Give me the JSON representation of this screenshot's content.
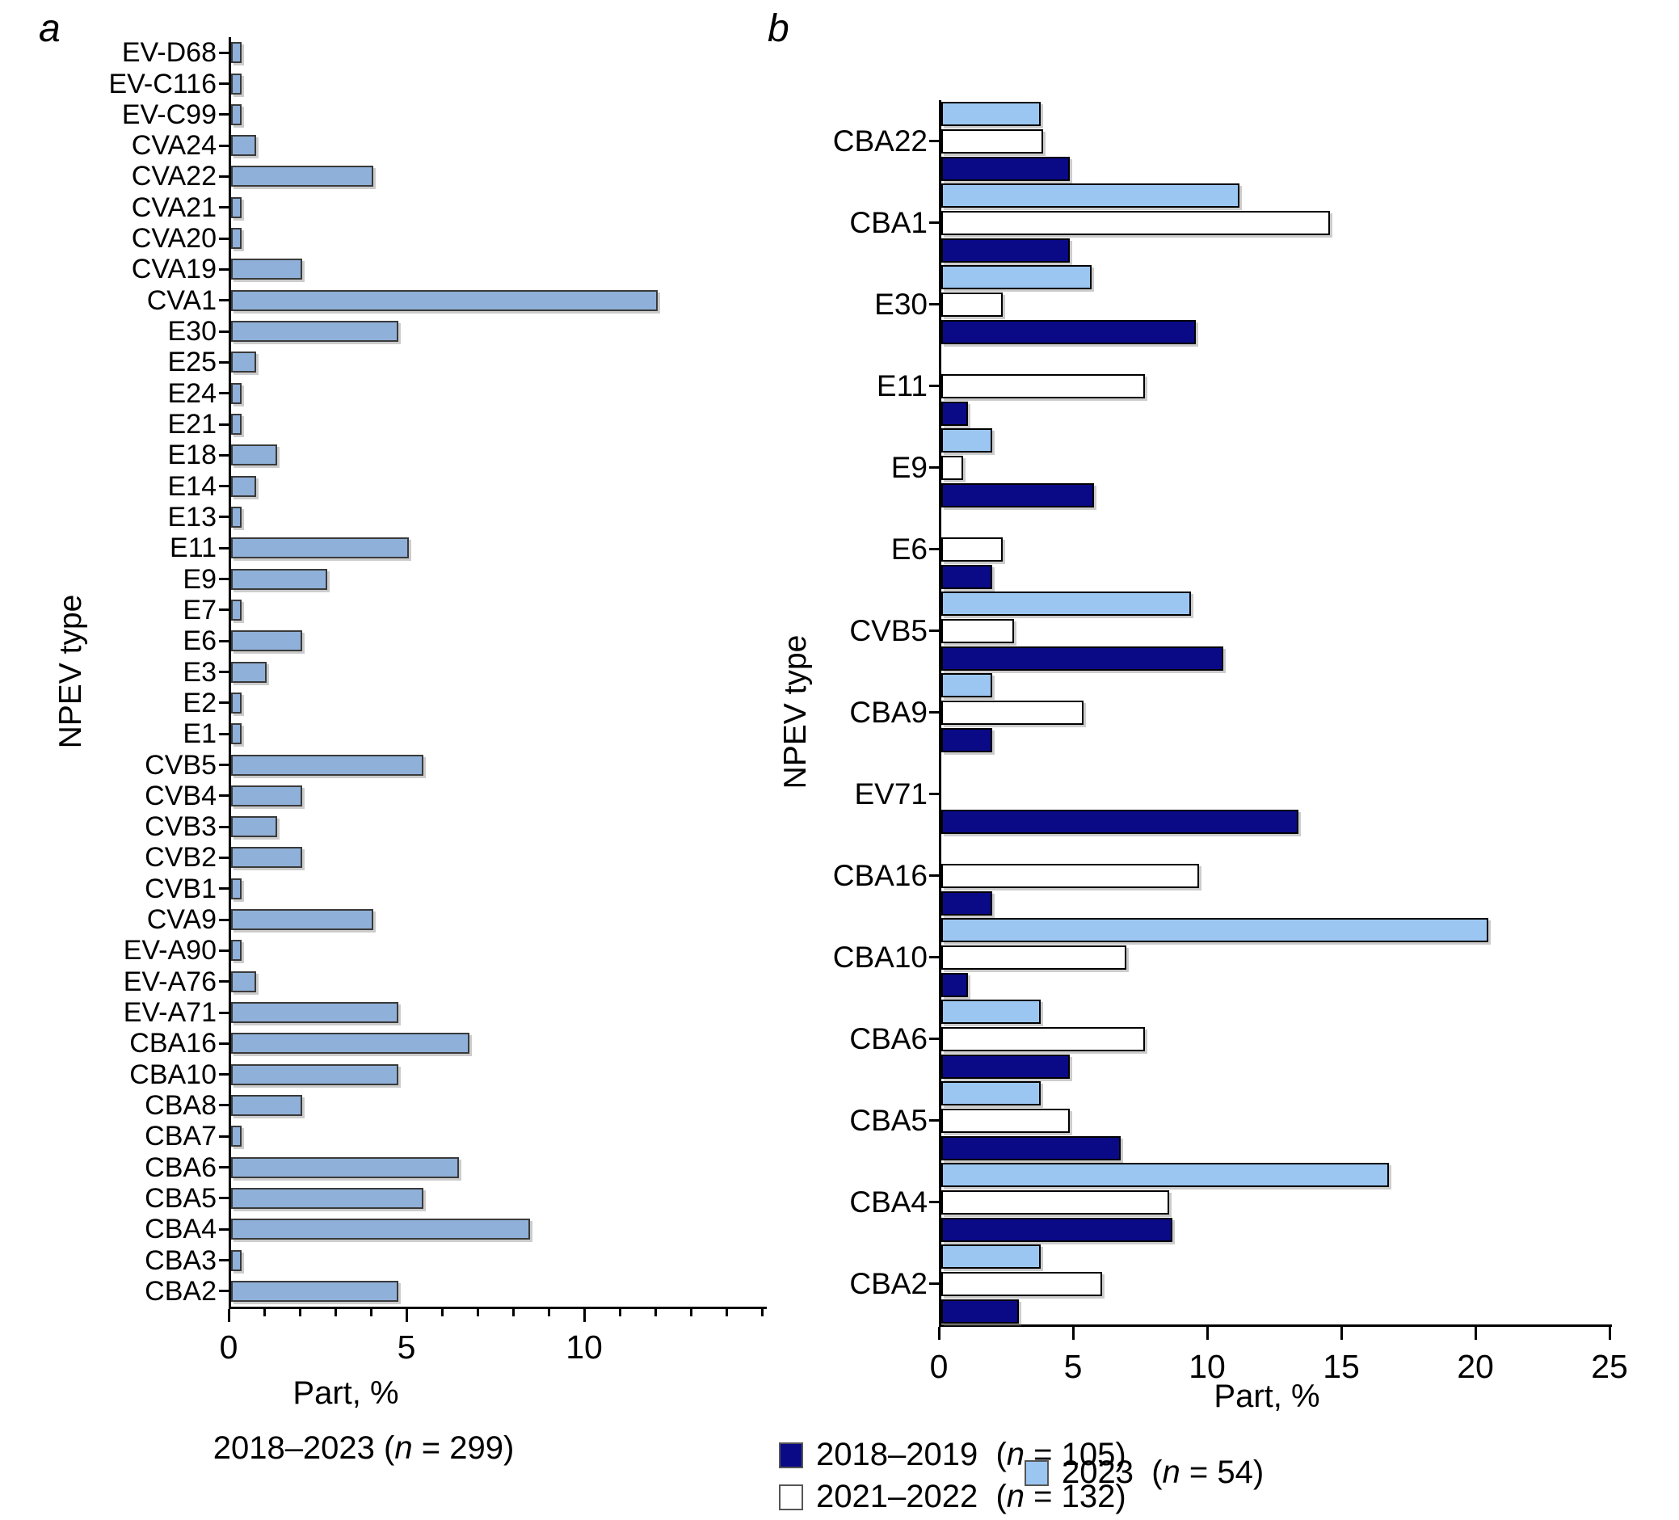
{
  "colors": {
    "panel_a_bar": "#8FB0D8",
    "navy": "#0A0A87",
    "white_bar": "#FFFFFF",
    "light_blue": "#9CC6F2",
    "axis": "#000000"
  },
  "chart_data": [
    {
      "type": "bar",
      "orientation": "horizontal",
      "panel": "a",
      "xlabel": "Part, %",
      "ylabel": "NPEV type",
      "subtitle_period": "2018–2023",
      "n": 299,
      "xlim": [
        0,
        15
      ],
      "xticks": [
        0,
        5,
        10
      ],
      "minor_tick_step": 1,
      "grid": false,
      "bar_color": "#8FB0D8",
      "categories": [
        "EV-D68",
        "EV-C116",
        "EV-C99",
        "CVA24",
        "CVA22",
        "CVA21",
        "CVA20",
        "CVA19",
        "CVA1",
        "E30",
        "E25",
        "E24",
        "E21",
        "E18",
        "E14",
        "E13",
        "E11",
        "E9",
        "E7",
        "E6",
        "E3",
        "E2",
        "E1",
        "CVB5",
        "CVB4",
        "CVB3",
        "CVB2",
        "CVB1",
        "CVA9",
        "EV-A90",
        "EV-A76",
        "EV-A71",
        "CBA16",
        "CBA10",
        "CBA8",
        "CBA7",
        "CBA6",
        "CBA5",
        "CBA4",
        "CBA3",
        "CBA2"
      ],
      "values": [
        0.3,
        0.3,
        0.3,
        0.7,
        4.0,
        0.3,
        0.3,
        2.0,
        12.0,
        4.7,
        0.7,
        0.3,
        0.3,
        1.3,
        0.7,
        0.3,
        5.0,
        2.7,
        0.3,
        2.0,
        1.0,
        0.3,
        0.3,
        5.4,
        2.0,
        1.3,
        2.0,
        0.3,
        4.0,
        0.3,
        0.7,
        4.7,
        6.7,
        4.7,
        2.0,
        0.3,
        6.4,
        5.4,
        8.4,
        0.3,
        4.7
      ]
    },
    {
      "type": "bar",
      "orientation": "horizontal",
      "grouped": true,
      "panel": "b",
      "xlabel": "Part, %",
      "ylabel": "NPEV type",
      "xlim": [
        0,
        25
      ],
      "xticks": [
        0,
        5,
        10,
        15,
        20,
        25
      ],
      "grid": false,
      "categories": [
        "CBA22",
        "CBA1",
        "E30",
        "E11",
        "E9",
        "E6",
        "CVB5",
        "CBA9",
        "EV71",
        "CBA16",
        "CBA10",
        "CBA6",
        "CBA5",
        "CBA4",
        "CBA2"
      ],
      "series": [
        {
          "name": "2023",
          "n": 54,
          "color": "#9CC6F2",
          "values": [
            3.7,
            11.1,
            5.6,
            0,
            1.9,
            0,
            9.3,
            1.9,
            0,
            0,
            20.4,
            3.7,
            3.7,
            16.7,
            3.7
          ]
        },
        {
          "name": "2021–2022",
          "n": 132,
          "color": "#FFFFFF",
          "values": [
            3.8,
            14.5,
            2.3,
            7.6,
            0.8,
            2.3,
            2.7,
            5.3,
            0,
            9.6,
            6.9,
            7.6,
            4.8,
            8.5,
            6.0
          ]
        },
        {
          "name": "2018–2019",
          "n": 105,
          "color": "#0A0A87",
          "values": [
            4.8,
            4.8,
            9.5,
            1.0,
            5.7,
            1.9,
            10.5,
            1.9,
            13.3,
            1.9,
            1.0,
            4.8,
            6.7,
            8.6,
            2.9
          ]
        }
      ]
    }
  ],
  "legend": {
    "items": [
      {
        "label": "2018–2019",
        "n": 105,
        "color": "#0A0A87"
      },
      {
        "label": "2021–2022",
        "n": 132,
        "color": "#FFFFFF"
      },
      {
        "label": "2023",
        "n": 54,
        "color": "#9CC6F2"
      }
    ]
  }
}
